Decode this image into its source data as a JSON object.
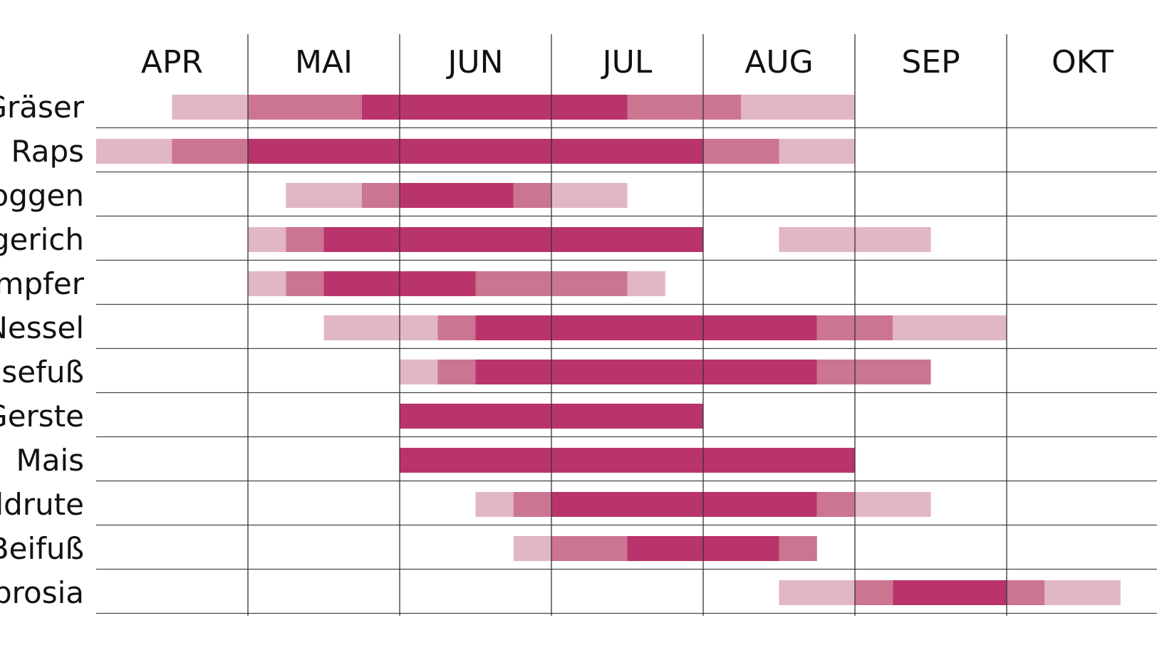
{
  "chart_data": {
    "type": "bar",
    "title": "",
    "months": [
      "APR",
      "MAI",
      "JUN",
      "JUL",
      "AUG",
      "SEP",
      "OKT"
    ],
    "intensity_levels": {
      "low": "#e1b6c5",
      "medium": "#cb7593",
      "high": "#b9346b"
    },
    "rows": [
      {
        "label": "Gräser",
        "segments": [
          {
            "start": 0.5,
            "end": 1.0,
            "level": "low"
          },
          {
            "start": 1.0,
            "end": 1.75,
            "level": "medium"
          },
          {
            "start": 1.75,
            "end": 3.5,
            "level": "high"
          },
          {
            "start": 3.5,
            "end": 4.25,
            "level": "medium"
          },
          {
            "start": 4.25,
            "end": 5.0,
            "level": "low"
          }
        ]
      },
      {
        "label": "Raps",
        "segments": [
          {
            "start": 0.0,
            "end": 0.5,
            "level": "low"
          },
          {
            "start": 0.5,
            "end": 1.0,
            "level": "medium"
          },
          {
            "start": 1.0,
            "end": 4.0,
            "level": "high"
          },
          {
            "start": 4.0,
            "end": 4.5,
            "level": "medium"
          },
          {
            "start": 4.5,
            "end": 5.0,
            "level": "low"
          }
        ]
      },
      {
        "label": "oggen",
        "segments": [
          {
            "start": 1.25,
            "end": 1.75,
            "level": "low"
          },
          {
            "start": 1.75,
            "end": 2.0,
            "level": "medium"
          },
          {
            "start": 2.0,
            "end": 2.75,
            "level": "high"
          },
          {
            "start": 2.75,
            "end": 3.0,
            "level": "medium"
          },
          {
            "start": 3.0,
            "end": 3.5,
            "level": "low"
          }
        ]
      },
      {
        "label": "gerich",
        "segments": [
          {
            "start": 1.0,
            "end": 1.25,
            "level": "low"
          },
          {
            "start": 1.25,
            "end": 1.5,
            "level": "medium"
          },
          {
            "start": 1.5,
            "end": 4.0,
            "level": "high"
          },
          {
            "start": 4.5,
            "end": 5.5,
            "level": "low"
          }
        ]
      },
      {
        "label": "mpfer",
        "segments": [
          {
            "start": 1.0,
            "end": 1.25,
            "level": "low"
          },
          {
            "start": 1.25,
            "end": 1.5,
            "level": "medium"
          },
          {
            "start": 1.5,
            "end": 2.5,
            "level": "high"
          },
          {
            "start": 2.5,
            "end": 3.5,
            "level": "medium"
          },
          {
            "start": 3.5,
            "end": 3.75,
            "level": "low"
          }
        ]
      },
      {
        "label": "Nessel",
        "segments": [
          {
            "start": 1.5,
            "end": 2.25,
            "level": "low"
          },
          {
            "start": 2.25,
            "end": 2.5,
            "level": "medium"
          },
          {
            "start": 2.5,
            "end": 4.75,
            "level": "high"
          },
          {
            "start": 4.75,
            "end": 5.25,
            "level": "medium"
          },
          {
            "start": 5.25,
            "end": 6.0,
            "level": "low"
          }
        ]
      },
      {
        "label": "nsefuß",
        "segments": [
          {
            "start": 2.0,
            "end": 2.25,
            "level": "low"
          },
          {
            "start": 2.25,
            "end": 2.5,
            "level": "medium"
          },
          {
            "start": 2.5,
            "end": 4.75,
            "level": "high"
          },
          {
            "start": 4.75,
            "end": 5.5,
            "level": "medium"
          }
        ]
      },
      {
        "label": "Gerste",
        "segments": [
          {
            "start": 2.0,
            "end": 4.0,
            "level": "high"
          }
        ]
      },
      {
        "label": "Mais",
        "segments": [
          {
            "start": 2.0,
            "end": 5.0,
            "level": "high"
          }
        ]
      },
      {
        "label": "ldrute",
        "segments": [
          {
            "start": 2.5,
            "end": 2.75,
            "level": "low"
          },
          {
            "start": 2.75,
            "end": 3.0,
            "level": "medium"
          },
          {
            "start": 3.0,
            "end": 4.75,
            "level": "high"
          },
          {
            "start": 4.75,
            "end": 5.0,
            "level": "medium"
          },
          {
            "start": 5.0,
            "end": 5.5,
            "level": "low"
          }
        ]
      },
      {
        "label": "Beifuß",
        "segments": [
          {
            "start": 2.75,
            "end": 3.0,
            "level": "low"
          },
          {
            "start": 3.0,
            "end": 3.5,
            "level": "medium"
          },
          {
            "start": 3.5,
            "end": 4.5,
            "level": "high"
          },
          {
            "start": 4.5,
            "end": 4.75,
            "level": "medium"
          }
        ]
      },
      {
        "label": "brosia",
        "segments": [
          {
            "start": 4.5,
            "end": 5.0,
            "level": "low"
          },
          {
            "start": 5.0,
            "end": 5.25,
            "level": "medium"
          },
          {
            "start": 5.25,
            "end": 6.0,
            "level": "high"
          },
          {
            "start": 6.0,
            "end": 6.25,
            "level": "medium"
          },
          {
            "start": 6.25,
            "end": 6.75,
            "level": "low"
          }
        ]
      }
    ]
  }
}
